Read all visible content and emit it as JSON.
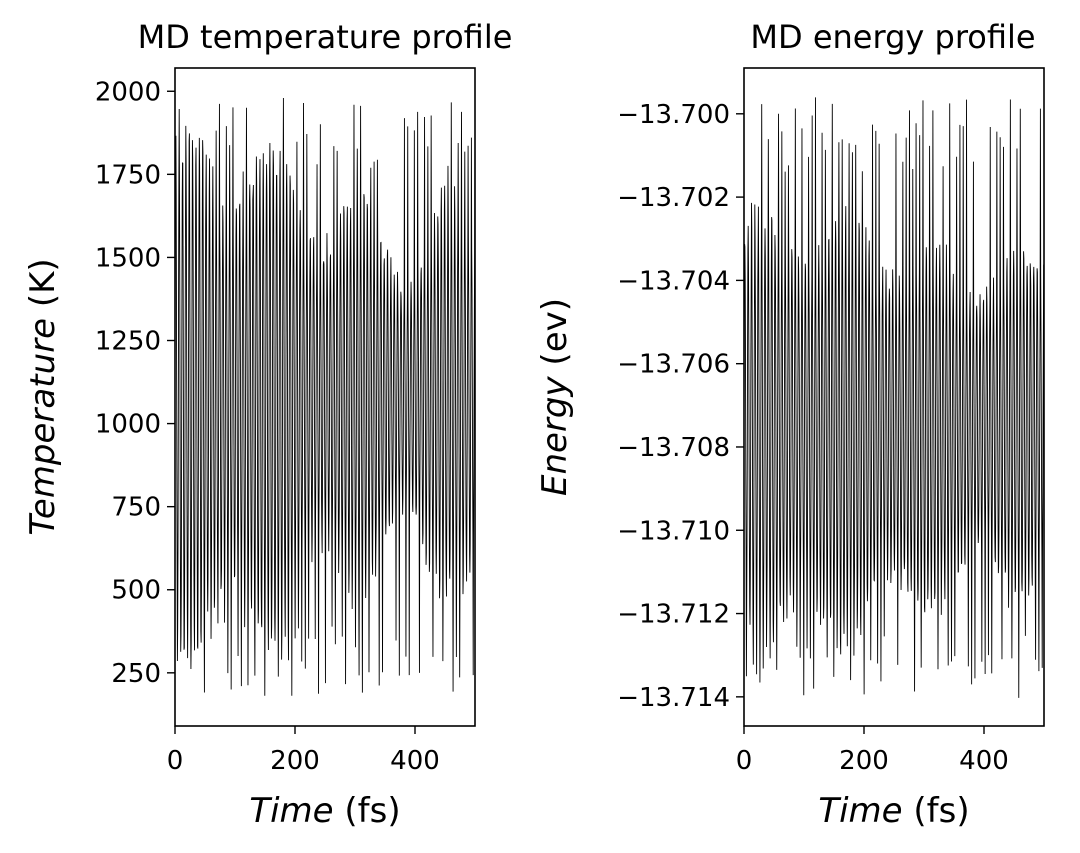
{
  "chart_data": [
    {
      "type": "line",
      "title": "MD temperature profile",
      "xlabel": {
        "italic": "Time",
        "unit": " (fs)"
      },
      "ylabel": {
        "italic": "Temperature",
        "unit": " (K)"
      },
      "xlim": [
        0,
        500
      ],
      "ylim": [
        90,
        2070
      ],
      "xticks": [
        0,
        200,
        400
      ],
      "xtick_labels": [
        "0",
        "200",
        "400"
      ],
      "yticks": [
        250,
        500,
        750,
        1000,
        1250,
        1500,
        1750,
        2000
      ],
      "ytick_labels": [
        "250",
        "500",
        "750",
        "1000",
        "1250",
        "1500",
        "1750",
        "2000"
      ],
      "line_color": "#000000",
      "series": [
        {
          "name": "Temperature",
          "x_start": 0,
          "x_end": 500,
          "points": 1000,
          "period_fs": 5.6,
          "baseline": 1080,
          "envelope_min": 380,
          "envelope_max": 880,
          "approx_min": 180,
          "approx_max": 1980
        }
      ]
    },
    {
      "type": "line",
      "title": "MD energy profile",
      "xlabel": {
        "italic": "Time",
        "unit": " (fs)"
      },
      "ylabel": {
        "italic": "Energy",
        "unit": " (ev)"
      },
      "xlim": [
        0,
        500
      ],
      "ylim": [
        -13.7147,
        -13.6989
      ],
      "xticks": [
        0,
        200,
        400
      ],
      "xtick_labels": [
        "0",
        "200",
        "400"
      ],
      "yticks": [
        -13.714,
        -13.712,
        -13.71,
        -13.708,
        -13.706,
        -13.704,
        -13.702,
        -13.7
      ],
      "ytick_labels": [
        "−13.714",
        "−13.712",
        "−13.710",
        "−13.708",
        "−13.706",
        "−13.704",
        "−13.702",
        "−13.700"
      ],
      "line_color": "#000000",
      "series": [
        {
          "name": "Energy",
          "x_start": 0,
          "x_end": 500,
          "points": 1000,
          "period_fs": 5.6,
          "baseline": -13.7075,
          "envelope_min": 0.0033,
          "envelope_max": 0.0058,
          "approx_min": -13.7141,
          "approx_max": -13.6996
        }
      ]
    }
  ]
}
